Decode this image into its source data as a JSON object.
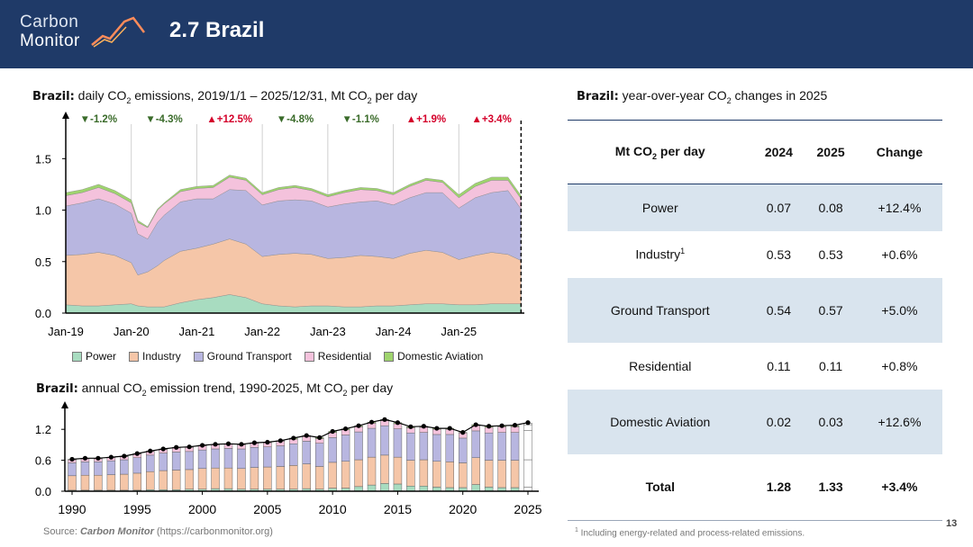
{
  "header": {
    "logo_line1": "Carbon",
    "logo_line2": "Monitor",
    "title": "2.7 Brazil"
  },
  "daily_panel": {
    "title_bold": "Brazil:",
    "title_text": "daily CO",
    "title_sub": "2",
    "title_text2": " emissions, 2019/1/1 – 2025/12/31, Mt CO",
    "title_sub2": "2",
    "title_text3": " per day"
  },
  "annual_panel": {
    "title_bold": "Brazil:",
    "title_text": "annual CO",
    "title_sub": "2",
    "title_text2": " emission trend, 1990-2025, Mt CO",
    "title_sub2": "2",
    "title_text3": " per day"
  },
  "table_panel": {
    "title_bold": "Brazil:",
    "title_text": "year-over-year CO",
    "title_sub": "2",
    "title_text2": " changes in 2025"
  },
  "legend": [
    {
      "label": "Power",
      "color": "#a8dcc0"
    },
    {
      "label": "Industry",
      "color": "#f5c6a8"
    },
    {
      "label": "Ground Transport",
      "color": "#b8b6e0"
    },
    {
      "label": "Residential",
      "color": "#f4c2dc"
    },
    {
      "label": "Domestic Aviation",
      "color": "#9fd46e"
    }
  ],
  "colors": {
    "header_bg": "#1f3a68",
    "down": "#3a6b2a",
    "up": "#d4002a",
    "row_shade": "#d9e4ee",
    "total_line": "#000000"
  },
  "chart_data": [
    {
      "type": "area",
      "title": "Brazil: daily CO2 emissions, 2019/1/1 – 2025/12/31, Mt CO2 per day",
      "x_tick_labels": [
        "Jan-19",
        "Jan-20",
        "Jan-21",
        "Jan-22",
        "Jan-23",
        "Jan-24",
        "Jan-25"
      ],
      "y_tick_labels": [
        "0.0",
        "0.5",
        "1.0",
        "1.5"
      ],
      "ylim": [
        0,
        1.8
      ],
      "stacked": true,
      "x": [
        2019.0,
        2019.25,
        2019.5,
        2019.75,
        2020.0,
        2020.1,
        2020.25,
        2020.4,
        2020.5,
        2020.75,
        2021.0,
        2021.25,
        2021.5,
        2021.75,
        2022.0,
        2022.25,
        2022.5,
        2022.75,
        2023.0,
        2023.25,
        2023.5,
        2023.75,
        2024.0,
        2024.25,
        2024.5,
        2024.75,
        2025.0,
        2025.25,
        2025.5,
        2025.75,
        2025.95
      ],
      "series": [
        {
          "name": "Power",
          "values": [
            0.08,
            0.07,
            0.07,
            0.08,
            0.09,
            0.07,
            0.06,
            0.06,
            0.06,
            0.1,
            0.13,
            0.15,
            0.18,
            0.15,
            0.09,
            0.07,
            0.06,
            0.07,
            0.07,
            0.06,
            0.06,
            0.07,
            0.07,
            0.08,
            0.09,
            0.09,
            0.08,
            0.08,
            0.09,
            0.09,
            0.09
          ]
        },
        {
          "name": "Industry",
          "values": [
            0.48,
            0.5,
            0.52,
            0.48,
            0.4,
            0.3,
            0.34,
            0.4,
            0.45,
            0.5,
            0.5,
            0.52,
            0.54,
            0.52,
            0.46,
            0.5,
            0.52,
            0.5,
            0.46,
            0.48,
            0.5,
            0.48,
            0.46,
            0.5,
            0.52,
            0.5,
            0.44,
            0.48,
            0.5,
            0.48,
            0.42
          ]
        },
        {
          "name": "Ground Transport",
          "values": [
            0.48,
            0.5,
            0.52,
            0.5,
            0.48,
            0.4,
            0.32,
            0.42,
            0.44,
            0.48,
            0.48,
            0.44,
            0.48,
            0.52,
            0.5,
            0.52,
            0.52,
            0.52,
            0.5,
            0.52,
            0.52,
            0.54,
            0.52,
            0.54,
            0.56,
            0.58,
            0.5,
            0.56,
            0.58,
            0.62,
            0.5
          ]
        },
        {
          "name": "Residential",
          "values": [
            0.1,
            0.1,
            0.11,
            0.1,
            0.1,
            0.11,
            0.11,
            0.12,
            0.11,
            0.1,
            0.1,
            0.11,
            0.12,
            0.1,
            0.1,
            0.11,
            0.12,
            0.1,
            0.1,
            0.11,
            0.12,
            0.1,
            0.1,
            0.11,
            0.12,
            0.1,
            0.1,
            0.11,
            0.12,
            0.1,
            0.1
          ]
        },
        {
          "name": "Domestic Aviation",
          "values": [
            0.03,
            0.03,
            0.03,
            0.03,
            0.03,
            0.02,
            0.01,
            0.01,
            0.01,
            0.02,
            0.02,
            0.02,
            0.02,
            0.02,
            0.02,
            0.02,
            0.02,
            0.02,
            0.02,
            0.02,
            0.02,
            0.02,
            0.02,
            0.02,
            0.02,
            0.02,
            0.03,
            0.03,
            0.03,
            0.03,
            0.03
          ]
        }
      ],
      "annotations": [
        {
          "year": 2019,
          "direction": "down",
          "label": "▼-1.2%"
        },
        {
          "year": 2020,
          "direction": "down",
          "label": "▼-4.3%"
        },
        {
          "year": 2021,
          "direction": "up",
          "label": "▲+12.5%"
        },
        {
          "year": 2022,
          "direction": "down",
          "label": "▼-4.8%"
        },
        {
          "year": 2023,
          "direction": "down",
          "label": "▼-1.1%"
        },
        {
          "year": 2024,
          "direction": "up",
          "label": "▲+1.9%"
        },
        {
          "year": 2025,
          "direction": "up",
          "label": "▲+3.4%"
        }
      ]
    },
    {
      "type": "bar",
      "title": "Brazil: annual CO2 emission trend, 1990-2025, Mt CO2 per day",
      "stacked": true,
      "ylim": [
        0,
        1.5
      ],
      "y_tick_labels": [
        "0.0",
        "0.6",
        "1.2"
      ],
      "x_tick_labels": [
        "1990",
        "1995",
        "2000",
        "2005",
        "2010",
        "2015",
        "2020",
        "2025"
      ],
      "categories": [
        1990,
        1991,
        1992,
        1993,
        1994,
        1995,
        1996,
        1997,
        1998,
        1999,
        2000,
        2001,
        2002,
        2003,
        2004,
        2005,
        2006,
        2007,
        2008,
        2009,
        2010,
        2011,
        2012,
        2013,
        2014,
        2015,
        2016,
        2017,
        2018,
        2019,
        2020,
        2021,
        2022,
        2023,
        2024,
        2025
      ],
      "series": [
        {
          "name": "Power",
          "values": [
            0.02,
            0.02,
            0.02,
            0.02,
            0.02,
            0.02,
            0.03,
            0.03,
            0.03,
            0.04,
            0.04,
            0.05,
            0.05,
            0.04,
            0.04,
            0.04,
            0.04,
            0.04,
            0.05,
            0.04,
            0.06,
            0.06,
            0.09,
            0.12,
            0.15,
            0.14,
            0.1,
            0.1,
            0.08,
            0.07,
            0.07,
            0.13,
            0.08,
            0.07,
            0.07,
            0.08
          ]
        },
        {
          "name": "Industry",
          "values": [
            0.28,
            0.29,
            0.29,
            0.3,
            0.31,
            0.33,
            0.35,
            0.37,
            0.38,
            0.38,
            0.4,
            0.4,
            0.4,
            0.4,
            0.42,
            0.43,
            0.44,
            0.46,
            0.48,
            0.44,
            0.5,
            0.52,
            0.52,
            0.54,
            0.55,
            0.52,
            0.5,
            0.51,
            0.5,
            0.5,
            0.48,
            0.52,
            0.52,
            0.53,
            0.53,
            0.53
          ]
        },
        {
          "name": "Ground Transport",
          "values": [
            0.25,
            0.26,
            0.26,
            0.27,
            0.28,
            0.3,
            0.32,
            0.34,
            0.35,
            0.35,
            0.36,
            0.37,
            0.38,
            0.38,
            0.39,
            0.39,
            0.4,
            0.42,
            0.44,
            0.45,
            0.48,
            0.51,
            0.54,
            0.56,
            0.57,
            0.55,
            0.53,
            0.53,
            0.52,
            0.53,
            0.48,
            0.52,
            0.53,
            0.54,
            0.54,
            0.57
          ]
        },
        {
          "name": "Residential",
          "values": [
            0.06,
            0.06,
            0.06,
            0.06,
            0.06,
            0.07,
            0.07,
            0.07,
            0.08,
            0.08,
            0.08,
            0.08,
            0.08,
            0.08,
            0.08,
            0.08,
            0.09,
            0.09,
            0.09,
            0.09,
            0.1,
            0.1,
            0.1,
            0.1,
            0.1,
            0.1,
            0.1,
            0.1,
            0.1,
            0.1,
            0.1,
            0.1,
            0.11,
            0.11,
            0.11,
            0.11
          ]
        },
        {
          "name": "Domestic Aviation",
          "values": [
            0.01,
            0.01,
            0.01,
            0.01,
            0.01,
            0.01,
            0.01,
            0.01,
            0.01,
            0.01,
            0.01,
            0.01,
            0.01,
            0.01,
            0.01,
            0.01,
            0.01,
            0.02,
            0.02,
            0.02,
            0.02,
            0.02,
            0.02,
            0.02,
            0.02,
            0.02,
            0.02,
            0.02,
            0.02,
            0.02,
            0.01,
            0.02,
            0.02,
            0.02,
            0.02,
            0.03
          ]
        }
      ],
      "total": [
        0.62,
        0.64,
        0.64,
        0.66,
        0.68,
        0.73,
        0.78,
        0.82,
        0.85,
        0.86,
        0.89,
        0.91,
        0.92,
        0.91,
        0.94,
        0.95,
        0.98,
        1.03,
        1.08,
        1.04,
        1.16,
        1.21,
        1.27,
        1.34,
        1.39,
        1.33,
        1.25,
        1.26,
        1.22,
        1.22,
        1.14,
        1.29,
        1.26,
        1.27,
        1.28,
        1.33
      ]
    }
  ],
  "table": {
    "headers": {
      "col1_text": "Mt CO",
      "col1_sub": "2",
      "col1_text2": " per day",
      "col2": "2024",
      "col3": "2025",
      "col4": "Change"
    },
    "rows": [
      {
        "sector": "Power",
        "sup": "",
        "v2024": "0.07",
        "v2025": "0.08",
        "change": "+12.4%",
        "shaded": true
      },
      {
        "sector": "Industry",
        "sup": "1",
        "v2024": "0.53",
        "v2025": "0.53",
        "change": "+0.6%",
        "shaded": false
      },
      {
        "sector": "Ground Transport",
        "sup": "",
        "v2024": "0.54",
        "v2025": "0.57",
        "change": "+5.0%",
        "shaded": true
      },
      {
        "sector": "Residential",
        "sup": "",
        "v2024": "0.11",
        "v2025": "0.11",
        "change": "+0.8%",
        "shaded": false
      },
      {
        "sector": "Domestic Aviation",
        "sup": "",
        "v2024": "0.02",
        "v2025": "0.03",
        "change": "+12.6%",
        "shaded": true
      },
      {
        "sector": "Total",
        "sup": "",
        "v2024": "1.28",
        "v2025": "1.33",
        "change": "+3.4%",
        "shaded": false,
        "bold": true
      }
    ]
  },
  "footer": {
    "source_prefix": "Source: ",
    "source_name": "Carbon Monitor",
    "source_url": " (https://carbonmonitor.org)",
    "footnote_sup": "1",
    "footnote_text": " Including energy-related and process-related emissions.",
    "page_number": "13"
  }
}
